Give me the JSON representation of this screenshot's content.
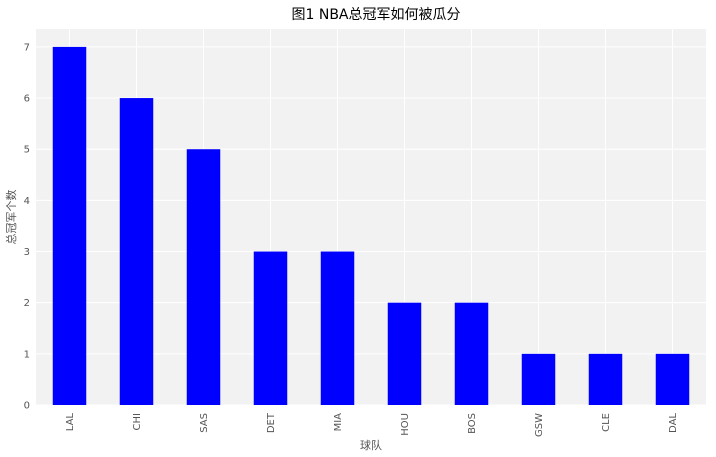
{
  "chart_data": {
    "type": "bar",
    "title": "图1 NBA总冠军如何被瓜分",
    "xlabel": "球队",
    "ylabel": "总冠军个数",
    "categories": [
      "LAL",
      "CHI",
      "SAS",
      "DET",
      "MIA",
      "HOU",
      "BOS",
      "GSW",
      "CLE",
      "DAL"
    ],
    "values": [
      7,
      6,
      5,
      3,
      3,
      2,
      2,
      1,
      1,
      1
    ],
    "ylim": [
      0,
      7.35
    ],
    "yticks": [
      0,
      1,
      2,
      3,
      4,
      5,
      6,
      7
    ],
    "grid": true,
    "legend": "none",
    "colors": {
      "bar": "#0000ff",
      "plot_background": "#f2f2f2",
      "grid": "#ffffff",
      "text": "#555555"
    }
  }
}
